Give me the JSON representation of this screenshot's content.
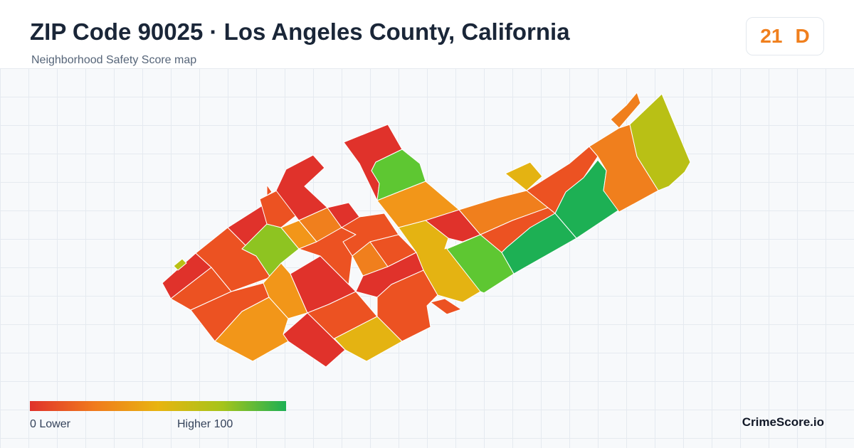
{
  "header": {
    "title": "ZIP Code 90025 · Los Angeles County, California",
    "subtitle": "Neighborhood Safety Score map"
  },
  "score_badge": {
    "score": "21",
    "grade": "D",
    "color": "#f07f1d"
  },
  "legend": {
    "low_label": "0  Lower",
    "high_label": "Higher  100",
    "gradient_colors": [
      "#e0322b",
      "#f07a1d",
      "#e8b410",
      "#a6c41a",
      "#1db054"
    ]
  },
  "brand": "CrimeScore.io",
  "colors": {
    "red": "#e0322b",
    "red_orange": "#ec5222",
    "orange": "#f07f1d",
    "amber": "#f29619",
    "gold": "#e4b312",
    "olive": "#b9c015",
    "lime": "#8ec421",
    "light_green": "#5ec732",
    "green": "#1db054"
  }
}
